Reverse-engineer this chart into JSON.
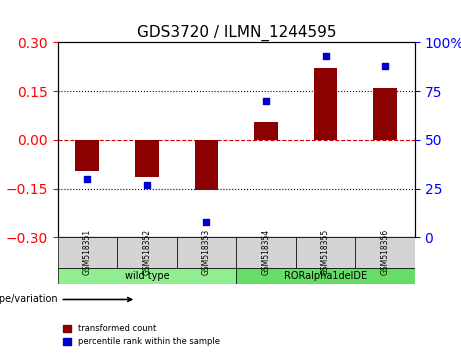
{
  "title": "GDS3720 / ILMN_1244595",
  "samples": [
    "GSM518351",
    "GSM518352",
    "GSM518353",
    "GSM518354",
    "GSM518355",
    "GSM518356"
  ],
  "transformed_count": [
    -0.095,
    -0.115,
    -0.155,
    0.055,
    0.22,
    0.16
  ],
  "percentile_rank": [
    30,
    27,
    8,
    70,
    93,
    88
  ],
  "groups": [
    {
      "label": "wild type",
      "indices": [
        0,
        1,
        2
      ],
      "color": "#90ee90"
    },
    {
      "label": "RORalpha1delDE",
      "indices": [
        3,
        4,
        5
      ],
      "color": "#66dd66"
    }
  ],
  "group_label_prefix": "genotype/variation",
  "bar_color": "#8b0000",
  "dot_color": "#0000cd",
  "ylim_left": [
    -0.3,
    0.3
  ],
  "ylim_right": [
    0,
    100
  ],
  "yticks_left": [
    -0.3,
    -0.15,
    0,
    0.15,
    0.3
  ],
  "yticks_right": [
    0,
    25,
    50,
    75,
    100
  ],
  "hline_y": 0,
  "hline_color": "#cc0000",
  "dotted_lines": [
    -0.15,
    0.15
  ],
  "legend_items": [
    "transformed count",
    "percentile rank within the sample"
  ],
  "bg_color": "#ffffff",
  "plot_bg_color": "#ffffff",
  "bar_width": 0.4
}
